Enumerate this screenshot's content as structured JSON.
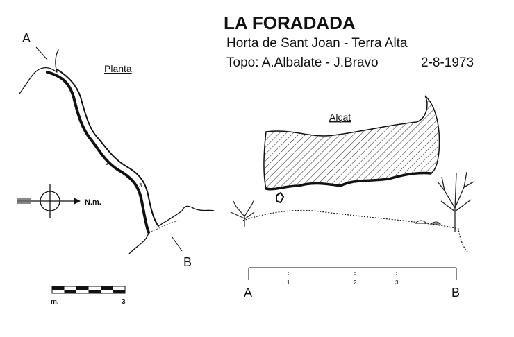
{
  "header": {
    "title": "LA FORADADA",
    "subtitle": "Horta de Sant Joan - Terra Alta",
    "credits": "Topo: A.Albalate - J.Bravo",
    "date": "2-8-1973"
  },
  "plan": {
    "label": "Planta",
    "start": "A",
    "end": "B",
    "stations": [
      "1",
      "2",
      "3"
    ],
    "north": "N.m.",
    "scale": {
      "unit": "m.",
      "length": "3"
    }
  },
  "profile": {
    "label": "Alçat",
    "start": "A",
    "end": "B",
    "ticks": [
      "1",
      "2",
      "3"
    ]
  }
}
